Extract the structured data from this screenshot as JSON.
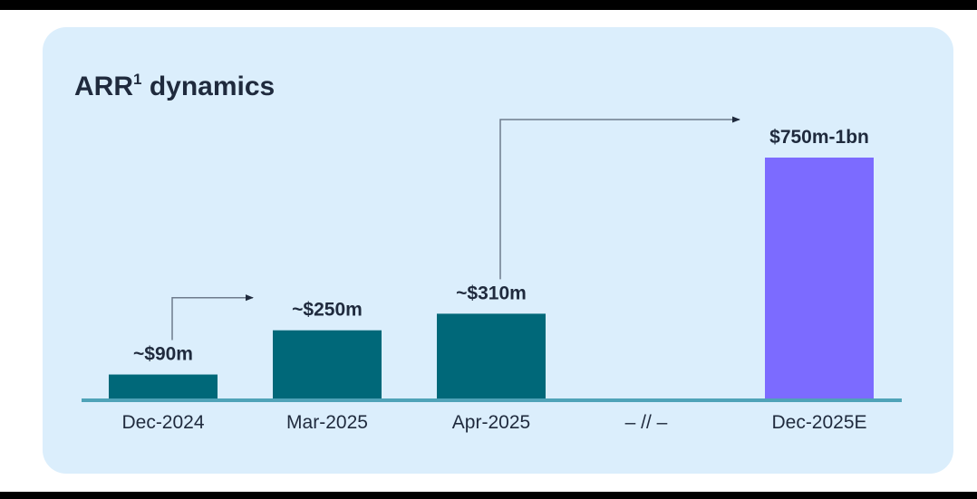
{
  "chart_data": {
    "type": "bar",
    "title": "ARR",
    "title_superscript": "1",
    "title_suffix": "dynamics",
    "categories": [
      "Dec-2024",
      "Mar-2025",
      "Apr-2025",
      "– // –",
      "Dec-2025E"
    ],
    "values": [
      90,
      250,
      310,
      null,
      875
    ],
    "value_labels": [
      "~$90m",
      "~$250m",
      "~$310m",
      "",
      "$750m-1bn"
    ],
    "bar_colors": [
      "#006879",
      "#006879",
      "#006879",
      null,
      "#7c6bff"
    ],
    "axis_line_color": "#4fa3b8",
    "arrows": [
      {
        "from": "Dec-2024",
        "to": "Mar-2025"
      },
      {
        "from": "Apr-2025",
        "to": "Dec-2025E"
      }
    ],
    "ylim": [
      0,
      920
    ],
    "grid": false,
    "xlabel": "",
    "ylabel": ""
  }
}
